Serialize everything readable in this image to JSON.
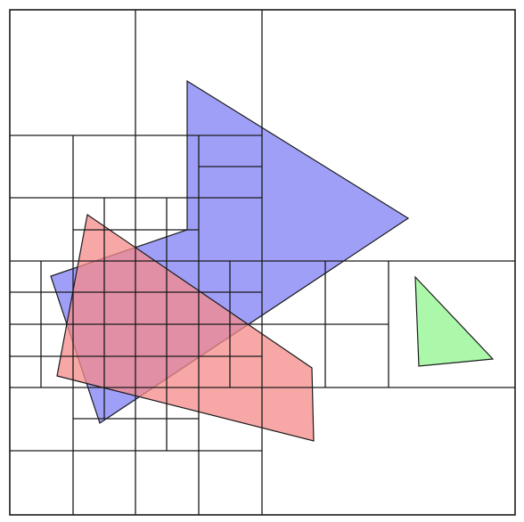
{
  "diagram": {
    "type": "quadtree-spatial-subdivision",
    "colors": {
      "background": "#ffffff",
      "grid_line": "#1a1a1a",
      "blue_polygon": "#7f7ff5",
      "red_polygon": "#f58a8a",
      "green_triangle": "#8ff58f"
    },
    "shape_opacity": 0.75
  }
}
